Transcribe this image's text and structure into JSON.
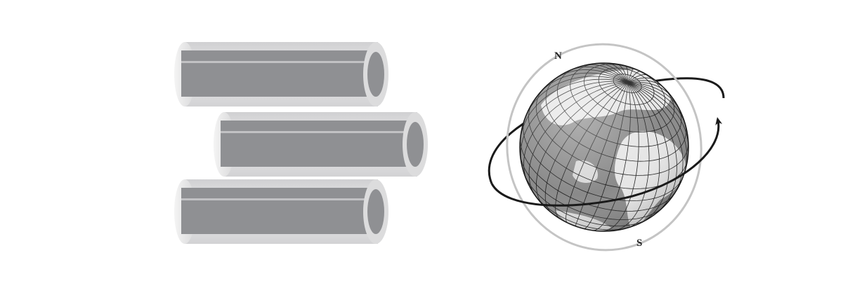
{
  "diagram": {
    "left_figure": {
      "subject": "stacked-hollow-cylinders",
      "cylinder_count": 3
    },
    "right_figure": {
      "subject": "globe-with-orbit-arrow",
      "pole_labels": {
        "north": "N",
        "south": "S"
      }
    }
  },
  "colors": {
    "background": "#ffffff",
    "tube_body": "#8f9093",
    "tube_shell": "#e2e2e3",
    "tube_end_rim": "#dcdcdd",
    "globe_ocean": "#8a8a8a",
    "globe_land": "#e6e6e6",
    "grid_line": "#1e1e1e",
    "orbit_ring": "#c4c4c4",
    "orbit_arrow": "#1a1a1a"
  }
}
